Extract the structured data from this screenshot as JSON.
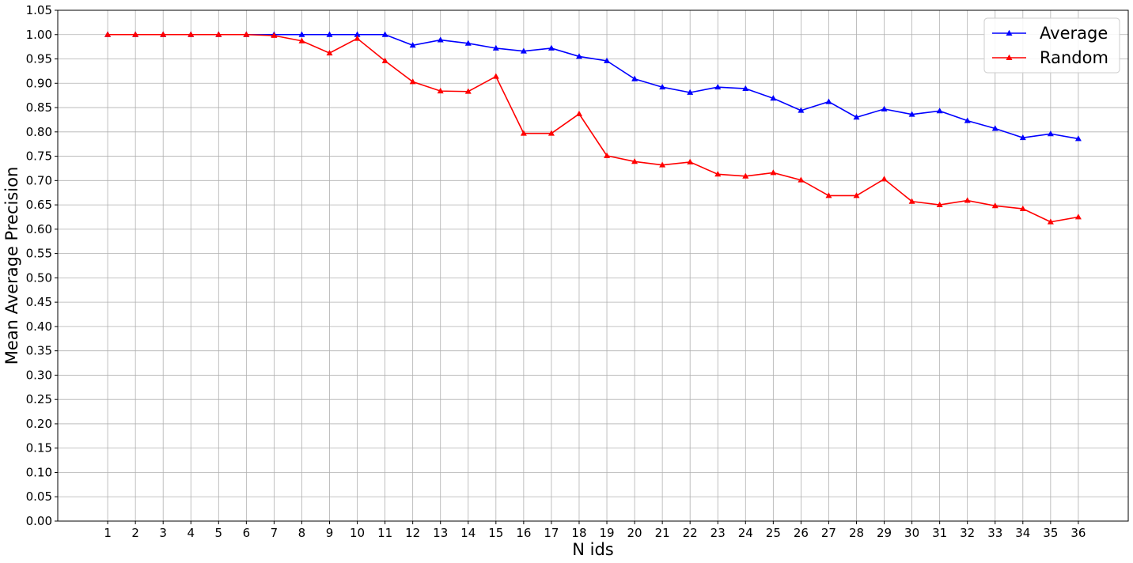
{
  "chart_data": {
    "type": "line",
    "xlabel": "N ids",
    "ylabel": "Mean Average Precision",
    "x": [
      1,
      2,
      3,
      4,
      5,
      6,
      7,
      8,
      9,
      10,
      11,
      12,
      13,
      14,
      15,
      16,
      17,
      18,
      19,
      20,
      21,
      22,
      23,
      24,
      25,
      26,
      27,
      28,
      29,
      30,
      31,
      32,
      33,
      34,
      35,
      36
    ],
    "xlim": [
      -0.8,
      37.8
    ],
    "ylim": [
      0.0,
      1.05
    ],
    "y_ticks": [
      "0.00",
      "0.05",
      "0.10",
      "0.15",
      "0.20",
      "0.25",
      "0.30",
      "0.35",
      "0.40",
      "0.45",
      "0.50",
      "0.55",
      "0.60",
      "0.65",
      "0.70",
      "0.75",
      "0.80",
      "0.85",
      "0.90",
      "0.95",
      "1.00",
      "1.05"
    ],
    "grid": true,
    "legend_position": "top-right",
    "series": [
      {
        "name": "Average",
        "color": "#0000ff",
        "marker": "triangle-up",
        "values": [
          1.0,
          1.0,
          1.0,
          1.0,
          1.0,
          1.0,
          1.0,
          1.0,
          1.0,
          1.0,
          1.0,
          0.978,
          0.989,
          0.982,
          0.972,
          0.966,
          0.972,
          0.955,
          0.946,
          0.909,
          0.892,
          0.881,
          0.892,
          0.889,
          0.869,
          0.844,
          0.862,
          0.83,
          0.847,
          0.836,
          0.843,
          0.823,
          0.807,
          0.788,
          0.796,
          0.786
        ]
      },
      {
        "name": "Random",
        "color": "#ff0000",
        "marker": "triangle-up",
        "values": [
          1.0,
          1.0,
          1.0,
          1.0,
          1.0,
          1.0,
          0.998,
          0.987,
          0.962,
          0.992,
          0.946,
          0.903,
          0.884,
          0.883,
          0.914,
          0.797,
          0.797,
          0.837,
          0.751,
          0.739,
          0.732,
          0.738,
          0.713,
          0.709,
          0.716,
          0.701,
          0.669,
          0.669,
          0.703,
          0.657,
          0.65,
          0.659,
          0.648,
          0.642,
          0.615,
          0.625
        ]
      }
    ]
  }
}
